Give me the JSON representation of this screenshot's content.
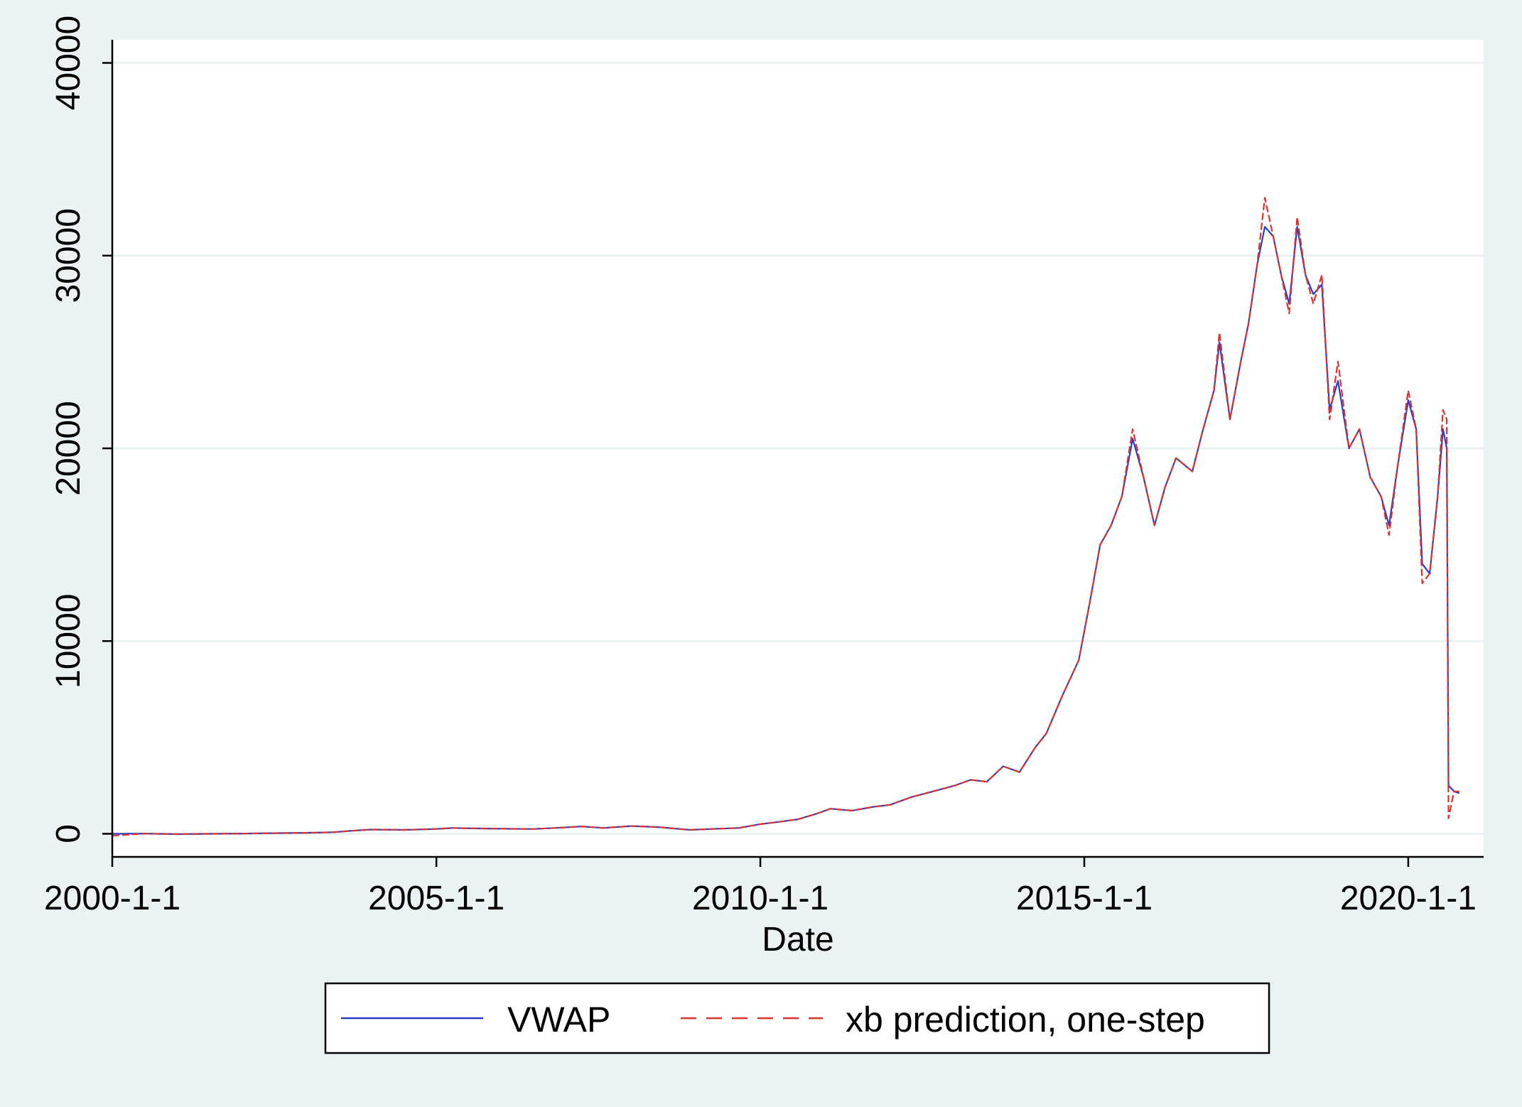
{
  "chart_data": {
    "type": "line",
    "title": "",
    "xlabel": "Date",
    "ylabel": "",
    "xlim": [
      "2000-01-01",
      "2021-03-01"
    ],
    "ylim": [
      -1200,
      41200
    ],
    "x_ticks": [
      {
        "date": "2000-01-01",
        "label": "2000-1-1"
      },
      {
        "date": "2005-01-01",
        "label": "2005-1-1"
      },
      {
        "date": "2010-01-01",
        "label": "2010-1-1"
      },
      {
        "date": "2015-01-01",
        "label": "2015-1-1"
      },
      {
        "date": "2020-01-01",
        "label": "2020-1-1"
      }
    ],
    "y_ticks": [
      {
        "value": 0,
        "label": "0"
      },
      {
        "value": 10000,
        "label": "10000"
      },
      {
        "value": 20000,
        "label": "20000"
      },
      {
        "value": 30000,
        "label": "30000"
      },
      {
        "value": 40000,
        "label": "40000"
      }
    ],
    "grid": true,
    "legend_position": "bottom",
    "colors": {
      "background": "#eaf2f3",
      "plot": "#ffffff",
      "gridline": "#eaf2f3",
      "vwap": "#2a3bcc",
      "prediction": "#d8332f"
    },
    "series": [
      {
        "name": "VWAP",
        "style": "solid",
        "x": [
          "2000-01-01",
          "2000-07-01",
          "2001-01-01",
          "2001-07-01",
          "2002-01-01",
          "2002-07-01",
          "2003-01-01",
          "2003-06-01",
          "2003-09-01",
          "2004-01-01",
          "2004-07-01",
          "2005-01-01",
          "2005-04-01",
          "2005-08-01",
          "2006-01-01",
          "2006-07-01",
          "2006-11-01",
          "2007-04-01",
          "2007-08-01",
          "2008-01-01",
          "2008-06-01",
          "2008-12-01",
          "2009-04-01",
          "2009-09-01",
          "2010-01-01",
          "2010-04-01",
          "2010-08-01",
          "2010-11-01",
          "2011-02-01",
          "2011-06-01",
          "2011-10-01",
          "2012-01-01",
          "2012-05-01",
          "2012-09-01",
          "2013-01-01",
          "2013-04-01",
          "2013-07-01",
          "2013-10-01",
          "2014-01-01",
          "2014-04-01",
          "2014-06-01",
          "2014-09-01",
          "2014-12-01",
          "2015-02-01",
          "2015-04-01",
          "2015-06-01",
          "2015-08-01",
          "2015-10-01",
          "2015-12-01",
          "2016-02-01",
          "2016-04-01",
          "2016-06-01",
          "2016-09-01",
          "2016-11-01",
          "2017-01-01",
          "2017-02-01",
          "2017-04-01",
          "2017-06-01",
          "2017-07-15",
          "2017-09-01",
          "2017-10-15",
          "2017-12-01",
          "2018-01-15",
          "2018-03-01",
          "2018-04-15",
          "2018-06-01",
          "2018-07-15",
          "2018-09-01",
          "2018-10-15",
          "2018-12-01",
          "2019-02-01",
          "2019-04-01",
          "2019-06-01",
          "2019-08-01",
          "2019-09-15",
          "2019-11-01",
          "2020-01-01",
          "2020-02-15",
          "2020-03-20",
          "2020-05-01",
          "2020-06-15",
          "2020-07-15",
          "2020-08-05",
          "2020-08-15",
          "2020-09-15",
          "2020-10-15"
        ],
        "y": [
          0,
          10,
          -20,
          0,
          10,
          30,
          50,
          80,
          150,
          220,
          200,
          250,
          300,
          280,
          260,
          250,
          300,
          380,
          300,
          400,
          350,
          200,
          250,
          300,
          500,
          600,
          750,
          1000,
          1300,
          1200,
          1400,
          1500,
          1900,
          2200,
          2500,
          2800,
          2700,
          3500,
          3200,
          4500,
          5200,
          7200,
          9000,
          12000,
          15000,
          16000,
          17500,
          20500,
          18500,
          16000,
          18000,
          19500,
          18800,
          21000,
          23000,
          25500,
          21500,
          24500,
          26500,
          29500,
          31500,
          31000,
          29000,
          27500,
          31500,
          29000,
          28000,
          28500,
          22000,
          23500,
          20000,
          21000,
          18500,
          17500,
          16000,
          19000,
          22500,
          21000,
          14000,
          13500,
          17500,
          21000,
          20000,
          2500,
          2200,
          2100
        ]
      },
      {
        "name": "xb prediction, one-step",
        "style": "dashed",
        "x": [
          "2000-01-01",
          "2000-07-01",
          "2001-01-01",
          "2001-07-01",
          "2002-01-01",
          "2002-07-01",
          "2003-01-01",
          "2003-06-01",
          "2003-09-01",
          "2004-01-01",
          "2004-07-01",
          "2005-01-01",
          "2005-04-01",
          "2005-08-01",
          "2006-01-01",
          "2006-07-01",
          "2006-11-01",
          "2007-04-01",
          "2007-08-01",
          "2008-01-01",
          "2008-06-01",
          "2008-12-01",
          "2009-04-01",
          "2009-09-01",
          "2010-01-01",
          "2010-04-01",
          "2010-08-01",
          "2010-11-01",
          "2011-02-01",
          "2011-06-01",
          "2011-10-01",
          "2012-01-01",
          "2012-05-01",
          "2012-09-01",
          "2013-01-01",
          "2013-04-01",
          "2013-07-01",
          "2013-10-01",
          "2014-01-01",
          "2014-04-01",
          "2014-06-01",
          "2014-09-01",
          "2014-12-01",
          "2015-02-01",
          "2015-04-01",
          "2015-06-01",
          "2015-08-01",
          "2015-10-01",
          "2015-12-01",
          "2016-02-01",
          "2016-04-01",
          "2016-06-01",
          "2016-09-01",
          "2016-11-01",
          "2017-01-01",
          "2017-02-01",
          "2017-04-01",
          "2017-06-01",
          "2017-07-15",
          "2017-09-01",
          "2017-10-15",
          "2017-12-01",
          "2018-01-15",
          "2018-03-01",
          "2018-04-15",
          "2018-06-01",
          "2018-07-15",
          "2018-09-01",
          "2018-10-15",
          "2018-12-01",
          "2019-02-01",
          "2019-04-01",
          "2019-06-01",
          "2019-08-01",
          "2019-09-15",
          "2019-11-01",
          "2020-01-01",
          "2020-02-15",
          "2020-03-20",
          "2020-05-01",
          "2020-06-15",
          "2020-07-15",
          "2020-08-05",
          "2020-08-15",
          "2020-09-15",
          "2020-10-15"
        ],
        "y": [
          -100,
          10,
          -20,
          0,
          10,
          30,
          50,
          80,
          150,
          220,
          200,
          250,
          300,
          280,
          260,
          250,
          300,
          380,
          300,
          400,
          350,
          200,
          250,
          300,
          500,
          600,
          750,
          1000,
          1300,
          1200,
          1400,
          1500,
          1900,
          2200,
          2500,
          2800,
          2700,
          3500,
          3200,
          4500,
          5200,
          7200,
          9000,
          12000,
          15000,
          16000,
          17500,
          21000,
          18500,
          16000,
          18000,
          19500,
          18800,
          21000,
          23000,
          26000,
          21500,
          24500,
          26500,
          29500,
          33000,
          31000,
          29000,
          27000,
          32000,
          29000,
          27500,
          29000,
          21500,
          24500,
          20000,
          21000,
          18500,
          17500,
          15500,
          19000,
          23000,
          21000,
          13000,
          13500,
          17500,
          22000,
          21500,
          800,
          2200,
          2200
        ]
      }
    ]
  },
  "legend": {
    "items": [
      {
        "label": "VWAP"
      },
      {
        "label": "xb prediction, one-step"
      }
    ]
  }
}
